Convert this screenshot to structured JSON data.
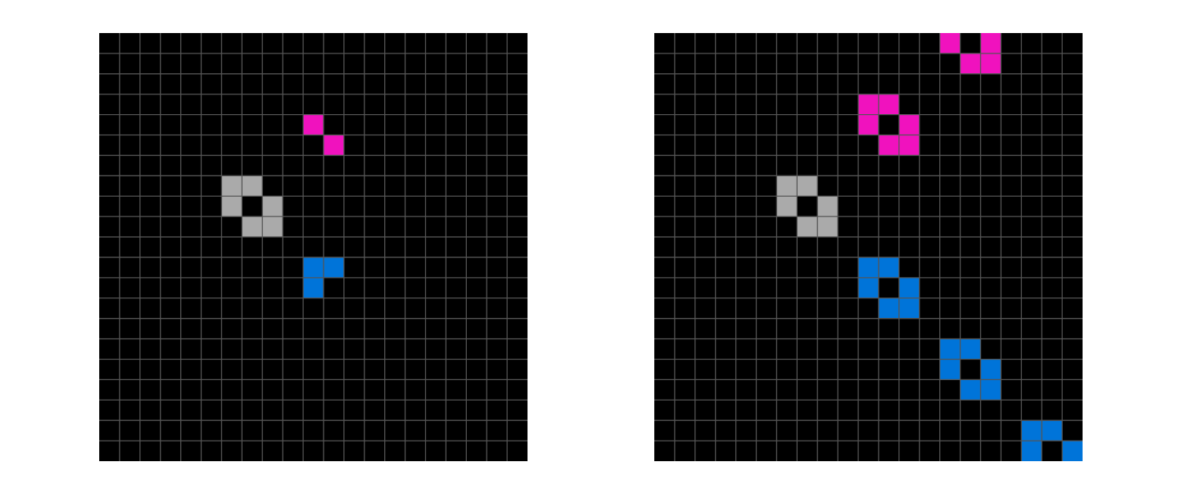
{
  "grid": {
    "rows": 21,
    "cols": 21
  },
  "colors": {
    "background": "#000000",
    "grid_line": "#555555",
    "gray": "#aaaaaa",
    "magenta": "#f012be",
    "blue": "#0074d9"
  },
  "panels": [
    {
      "name": "input-grid",
      "cells": [
        {
          "row": 4,
          "col": 10,
          "color": "magenta"
        },
        {
          "row": 5,
          "col": 11,
          "color": "magenta"
        },
        {
          "row": 7,
          "col": 6,
          "color": "gray"
        },
        {
          "row": 7,
          "col": 7,
          "color": "gray"
        },
        {
          "row": 8,
          "col": 6,
          "color": "gray"
        },
        {
          "row": 8,
          "col": 8,
          "color": "gray"
        },
        {
          "row": 9,
          "col": 7,
          "color": "gray"
        },
        {
          "row": 9,
          "col": 8,
          "color": "gray"
        },
        {
          "row": 11,
          "col": 10,
          "color": "blue"
        },
        {
          "row": 11,
          "col": 11,
          "color": "blue"
        },
        {
          "row": 12,
          "col": 10,
          "color": "blue"
        }
      ]
    },
    {
      "name": "output-grid",
      "cells": [
        {
          "row": 0,
          "col": 14,
          "color": "magenta"
        },
        {
          "row": 0,
          "col": 16,
          "color": "magenta"
        },
        {
          "row": 1,
          "col": 15,
          "color": "magenta"
        },
        {
          "row": 1,
          "col": 16,
          "color": "magenta"
        },
        {
          "row": 3,
          "col": 10,
          "color": "magenta"
        },
        {
          "row": 3,
          "col": 11,
          "color": "magenta"
        },
        {
          "row": 4,
          "col": 10,
          "color": "magenta"
        },
        {
          "row": 4,
          "col": 12,
          "color": "magenta"
        },
        {
          "row": 5,
          "col": 11,
          "color": "magenta"
        },
        {
          "row": 5,
          "col": 12,
          "color": "magenta"
        },
        {
          "row": 7,
          "col": 6,
          "color": "gray"
        },
        {
          "row": 7,
          "col": 7,
          "color": "gray"
        },
        {
          "row": 8,
          "col": 6,
          "color": "gray"
        },
        {
          "row": 8,
          "col": 8,
          "color": "gray"
        },
        {
          "row": 9,
          "col": 7,
          "color": "gray"
        },
        {
          "row": 9,
          "col": 8,
          "color": "gray"
        },
        {
          "row": 11,
          "col": 10,
          "color": "blue"
        },
        {
          "row": 11,
          "col": 11,
          "color": "blue"
        },
        {
          "row": 12,
          "col": 10,
          "color": "blue"
        },
        {
          "row": 12,
          "col": 12,
          "color": "blue"
        },
        {
          "row": 13,
          "col": 11,
          "color": "blue"
        },
        {
          "row": 13,
          "col": 12,
          "color": "blue"
        },
        {
          "row": 15,
          "col": 14,
          "color": "blue"
        },
        {
          "row": 15,
          "col": 15,
          "color": "blue"
        },
        {
          "row": 16,
          "col": 14,
          "color": "blue"
        },
        {
          "row": 16,
          "col": 16,
          "color": "blue"
        },
        {
          "row": 17,
          "col": 15,
          "color": "blue"
        },
        {
          "row": 17,
          "col": 16,
          "color": "blue"
        },
        {
          "row": 19,
          "col": 18,
          "color": "blue"
        },
        {
          "row": 19,
          "col": 19,
          "color": "blue"
        },
        {
          "row": 20,
          "col": 18,
          "color": "blue"
        },
        {
          "row": 20,
          "col": 20,
          "color": "blue"
        }
      ]
    }
  ]
}
